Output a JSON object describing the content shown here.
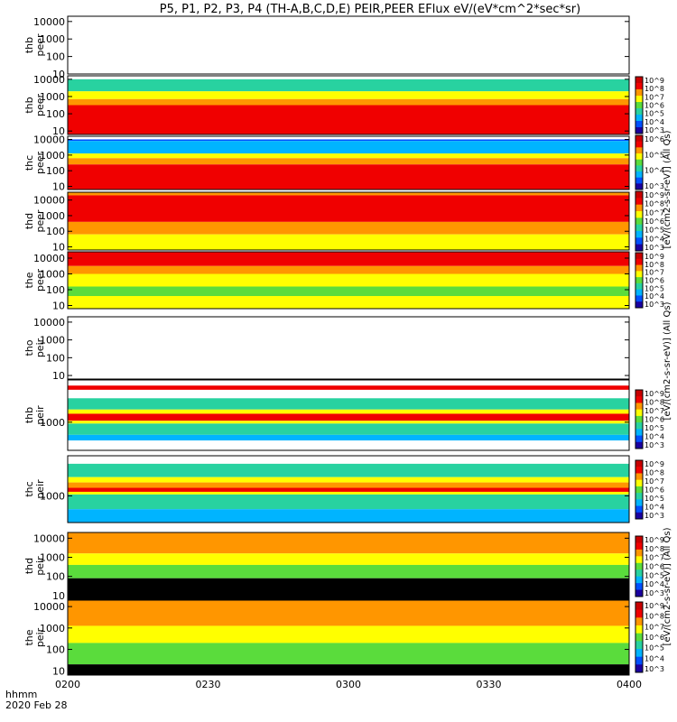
{
  "title": "P5, P1, P2, P3, P4 (TH-A,B,C,D,E) PEIR,PEER EFlux eV/(eV*cm^2*sec*sr)",
  "colorbar_label": "[eV/(cm2-s-sr-eV)] (All Qs)",
  "colorbar_ticks": [
    "10^2",
    "10^3",
    "10^4",
    "10^5",
    "10^6",
    "10^7",
    "10^8",
    "10^9"
  ],
  "time_axis": {
    "ticks": [
      "0200",
      "0230",
      "0300",
      "0330",
      "0400"
    ],
    "label_line1": "hhmm",
    "label_line2": "2020 Feb 28"
  },
  "colors": {
    "black": "#000000",
    "navy": "#1a00a0",
    "blue": "#0050ff",
    "cyan": "#00b4ff",
    "teal": "#28d2a0",
    "green": "#5adc3c",
    "yellow": "#ffff00",
    "orange": "#ff9600",
    "red": "#f00000",
    "darkred": "#c80000"
  },
  "chart_data": {
    "type": "heatmap",
    "x_range": [
      "0200",
      "0400"
    ],
    "panels": [
      {
        "probe": "thb",
        "species": "peer",
        "empty": true,
        "ylabels": [
          "10000",
          "1000",
          "100",
          "10"
        ],
        "ylog": [
          1,
          4.3
        ],
        "bands": []
      },
      {
        "probe": "thb",
        "species": "peer",
        "empty": false,
        "ylabels": [
          "10000",
          "1000",
          "100",
          "10"
        ],
        "ylog": [
          0.8,
          4.2
        ],
        "bands": [
          {
            "from": 4.0,
            "to": 4.2,
            "level": "white"
          },
          {
            "from": 3.3,
            "to": 4.0,
            "level": "teal"
          },
          {
            "from": 2.85,
            "to": 3.3,
            "level": "yellow"
          },
          {
            "from": 2.5,
            "to": 2.85,
            "level": "orange"
          },
          {
            "from": 0.8,
            "to": 2.5,
            "level": "red"
          }
        ]
      },
      {
        "probe": "thc",
        "species": "peer",
        "empty": false,
        "ylabels": [
          "10000",
          "1000",
          "100",
          "10"
        ],
        "ylog": [
          0.8,
          4.2
        ],
        "bands": [
          {
            "from": 4.0,
            "to": 4.2,
            "level": "white"
          },
          {
            "from": 3.9,
            "to": 4.0,
            "level": "blue"
          },
          {
            "from": 3.1,
            "to": 3.9,
            "level": "cyan"
          },
          {
            "from": 2.8,
            "to": 3.1,
            "level": "yellow"
          },
          {
            "from": 2.4,
            "to": 2.8,
            "level": "orange"
          },
          {
            "from": 0.8,
            "to": 2.4,
            "level": "red"
          }
        ]
      },
      {
        "probe": "thd",
        "species": "peer",
        "empty": false,
        "ylabels": [
          "10000",
          "1000",
          "100",
          "10"
        ],
        "ylog": [
          0.8,
          4.5
        ],
        "bands": [
          {
            "from": 4.3,
            "to": 4.5,
            "level": "orange"
          },
          {
            "from": 2.6,
            "to": 4.3,
            "level": "red"
          },
          {
            "from": 1.8,
            "to": 2.6,
            "level": "orange"
          },
          {
            "from": 0.8,
            "to": 1.8,
            "level": "yellow"
          }
        ]
      },
      {
        "probe": "the",
        "species": "peer",
        "empty": false,
        "ylabels": [
          "10000",
          "1000",
          "100",
          "10"
        ],
        "ylog": [
          0.8,
          4.4
        ],
        "bands": [
          {
            "from": 3.5,
            "to": 4.4,
            "level": "red"
          },
          {
            "from": 3.0,
            "to": 3.5,
            "level": "orange"
          },
          {
            "from": 2.2,
            "to": 3.0,
            "level": "yellow"
          },
          {
            "from": 1.6,
            "to": 2.2,
            "level": "green"
          },
          {
            "from": 0.8,
            "to": 1.6,
            "level": "yellow"
          }
        ]
      },
      {
        "probe": "tho",
        "species": "peir",
        "empty": true,
        "ylabels": [
          "10000",
          "1000",
          "100",
          "10"
        ],
        "ylog": [
          0.8,
          4.3
        ],
        "bands": []
      },
      {
        "probe": "thb",
        "species": "peir",
        "empty": false,
        "ylabels": [
          "1000"
        ],
        "ylog": [
          2.0,
          4.5
        ],
        "bands": [
          {
            "from": 4.3,
            "to": 4.5,
            "level": "white"
          },
          {
            "from": 4.15,
            "to": 4.3,
            "level": "red"
          },
          {
            "from": 3.85,
            "to": 4.15,
            "level": "white"
          },
          {
            "from": 3.45,
            "to": 3.85,
            "level": "teal"
          },
          {
            "from": 3.3,
            "to": 3.45,
            "level": "yellow"
          },
          {
            "from": 3.05,
            "to": 3.3,
            "level": "red"
          },
          {
            "from": 2.95,
            "to": 3.05,
            "level": "yellow"
          },
          {
            "from": 2.55,
            "to": 2.95,
            "level": "teal"
          },
          {
            "from": 2.35,
            "to": 2.55,
            "level": "cyan"
          },
          {
            "from": 2.0,
            "to": 2.35,
            "level": "white"
          }
        ]
      },
      {
        "probe": "thc",
        "species": "peir",
        "empty": false,
        "ylabels": [
          "1000"
        ],
        "ylog": [
          2.0,
          4.5
        ],
        "bands": [
          {
            "from": 4.2,
            "to": 4.5,
            "level": "white"
          },
          {
            "from": 3.7,
            "to": 4.2,
            "level": "teal"
          },
          {
            "from": 3.5,
            "to": 3.7,
            "level": "yellow"
          },
          {
            "from": 3.3,
            "to": 3.5,
            "level": "orange"
          },
          {
            "from": 3.15,
            "to": 3.3,
            "level": "red"
          },
          {
            "from": 3.05,
            "to": 3.15,
            "level": "yellow"
          },
          {
            "from": 2.5,
            "to": 3.05,
            "level": "teal"
          },
          {
            "from": 2.0,
            "to": 2.5,
            "level": "cyan"
          }
        ]
      },
      {
        "probe": "thd",
        "species": "peir",
        "empty": false,
        "ylabels": [
          "10000",
          "1000",
          "100",
          "10"
        ],
        "ylog": [
          0.8,
          4.3
        ],
        "bands": [
          {
            "from": 3.2,
            "to": 4.3,
            "level": "orange"
          },
          {
            "from": 2.6,
            "to": 3.2,
            "level": "yellow"
          },
          {
            "from": 1.9,
            "to": 2.6,
            "level": "green"
          },
          {
            "from": 0.8,
            "to": 1.9,
            "level": "black"
          }
        ]
      },
      {
        "probe": "the",
        "species": "peir",
        "empty": false,
        "ylabels": [
          "10000",
          "1000",
          "100",
          "10"
        ],
        "ylog": [
          0.8,
          4.3
        ],
        "bands": [
          {
            "from": 3.1,
            "to": 4.3,
            "level": "orange"
          },
          {
            "from": 2.3,
            "to": 3.1,
            "level": "yellow"
          },
          {
            "from": 1.3,
            "to": 2.3,
            "level": "green"
          },
          {
            "from": 0.8,
            "to": 1.3,
            "level": "black"
          }
        ]
      }
    ]
  }
}
